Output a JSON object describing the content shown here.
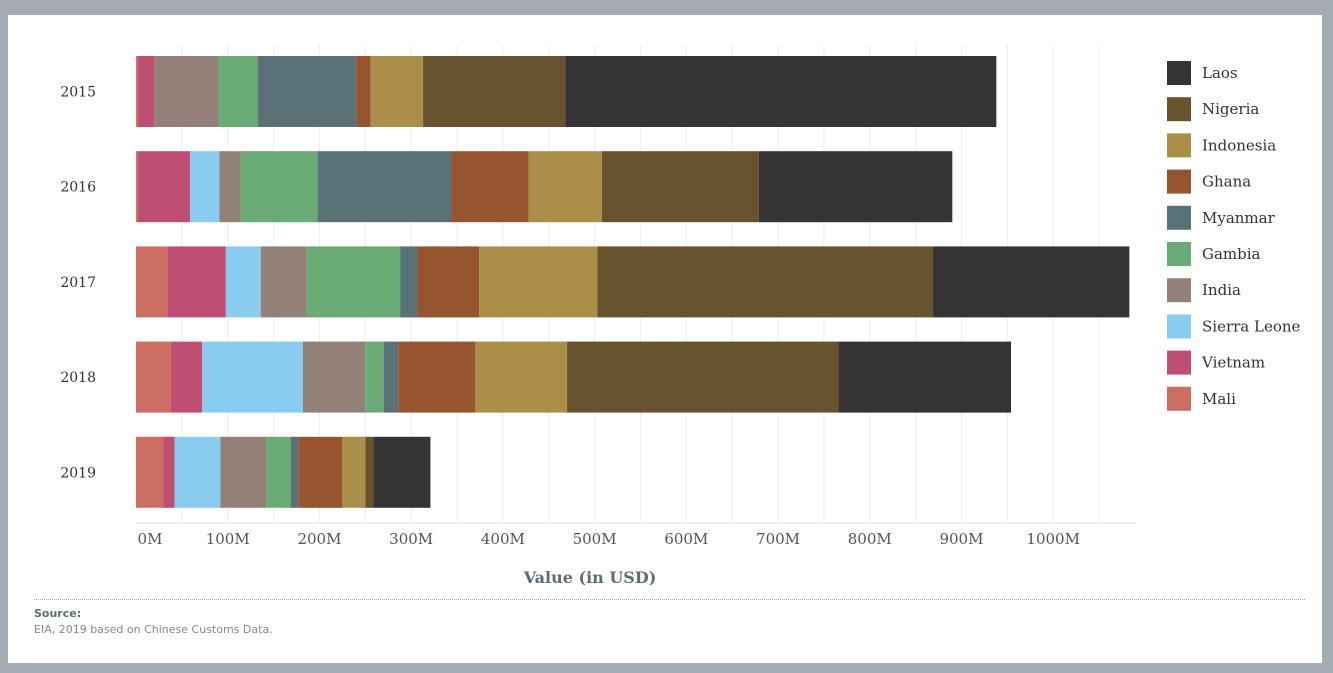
{
  "chart_data": {
    "type": "bar",
    "orientation": "horizontal",
    "stacked": true,
    "xlabel": "Value (in USD)",
    "x_ticks": [
      "0M",
      "100M",
      "200M",
      "300M",
      "400M",
      "500M",
      "600M",
      "700M",
      "800M",
      "900M",
      "1000M"
    ],
    "xlim": [
      0,
      1090
    ],
    "grid": true,
    "legend_position": "right",
    "categories": [
      "2015",
      "2016",
      "2017",
      "2018",
      "2019"
    ],
    "series": [
      {
        "name": "Mali",
        "color": "#cc6f62",
        "values": [
          2,
          2,
          34,
          38,
          30
        ]
      },
      {
        "name": "Vietnam",
        "color": "#bf4f72",
        "values": [
          18,
          57,
          64,
          34,
          12
        ]
      },
      {
        "name": "Sierra Leone",
        "color": "#8acbf0",
        "values": [
          0,
          32,
          38,
          110,
          50
        ]
      },
      {
        "name": "India",
        "color": "#938079",
        "values": [
          70,
          23,
          50,
          68,
          50
        ]
      },
      {
        "name": "Gambia",
        "color": "#6aaa74",
        "values": [
          43,
          84,
          102,
          20,
          27
        ]
      },
      {
        "name": "Myanmar",
        "color": "#597177",
        "values": [
          107,
          146,
          19,
          16,
          8
        ]
      },
      {
        "name": "Ghana",
        "color": "#96552e",
        "values": [
          16,
          84,
          67,
          84,
          48
        ]
      },
      {
        "name": "Indonesia",
        "color": "#ab8e48",
        "values": [
          57,
          80,
          129,
          100,
          25
        ]
      },
      {
        "name": "Nigeria",
        "color": "#68532e",
        "values": [
          155,
          171,
          366,
          296,
          9
        ]
      },
      {
        "name": "Laos",
        "color": "#353334",
        "values": [
          470,
          211,
          214,
          188,
          62
        ]
      }
    ]
  },
  "source": {
    "title": "Source:",
    "text": "EIA, 2019 based on Chinese Customs Data."
  }
}
